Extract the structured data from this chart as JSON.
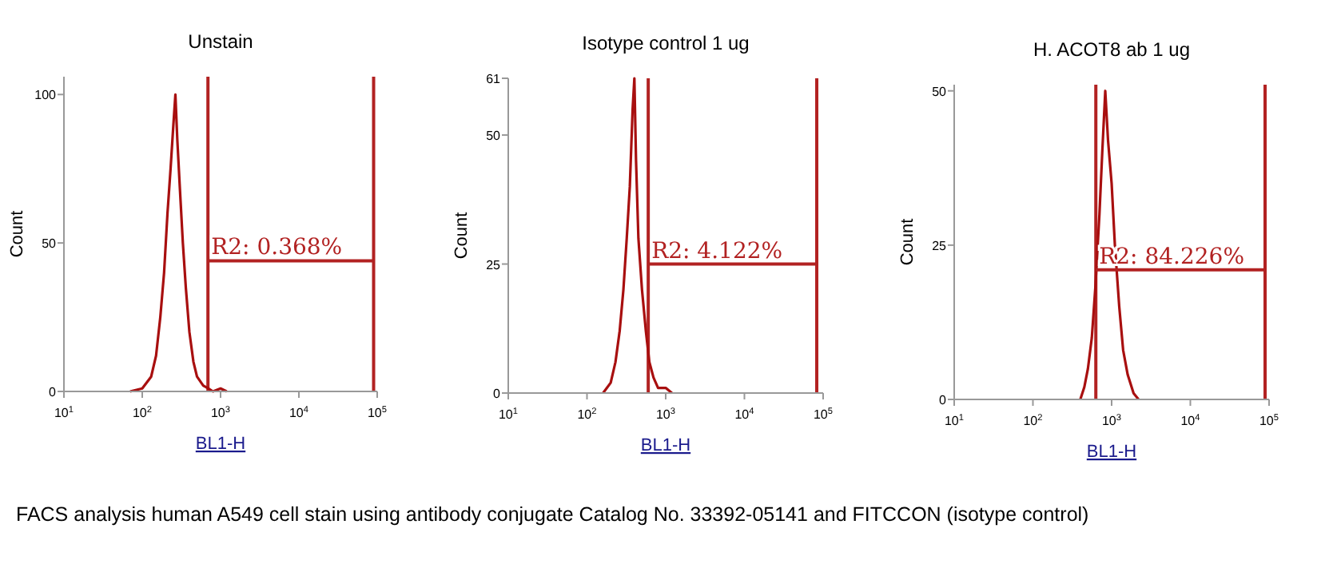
{
  "chart_data": [
    {
      "type": "line",
      "title": "Unstain",
      "xlabel": "BL1-H",
      "ylabel": "Count",
      "log": "x",
      "xlim": [
        10,
        100000
      ],
      "xticks": [
        {
          "value": 10,
          "label": "10$^{1}$"
        },
        {
          "value": 100,
          "label": "10$^{2}$"
        },
        {
          "value": 1000,
          "label": "10$^{3}$"
        },
        {
          "value": 10000,
          "label": "10$^{4}$"
        },
        {
          "value": 100000,
          "label": "10$^{5}$"
        }
      ],
      "ylim": [
        0,
        106
      ],
      "yticks": [
        0,
        50,
        100
      ],
      "series": [
        {
          "color": "#a80f0f",
          "x": [
            70,
            100,
            130,
            150,
            170,
            190,
            210,
            230,
            250,
            265,
            280,
            300,
            330,
            360,
            400,
            450,
            500,
            600,
            700,
            800,
            1000,
            1200
          ],
          "values": [
            0,
            1,
            5,
            12,
            25,
            40,
            60,
            75,
            90,
            100,
            85,
            70,
            50,
            35,
            20,
            10,
            5,
            2,
            1,
            0,
            1,
            0
          ]
        },
        {
          "color": "#b22222",
          "x": [
            690,
            90000
          ],
          "values": [
            44,
            44
          ]
        }
      ],
      "ref_lines": [
        {
          "axis": "x",
          "value": 690,
          "color": "#b22222"
        },
        {
          "axis": "x",
          "value": 90000,
          "color": "#b22222"
        }
      ],
      "annotations": [
        {
          "text": "R2: 0.368%",
          "x": 690,
          "y": 44
        },
        "FACS analysis human A549 cell stain using antibody conjugate Catalog No. 33392-05141 and FITCCON (isotype control)"
      ]
    },
    {
      "type": "line",
      "title": "Isotype control 1 ug",
      "xlabel": "BL1-H",
      "ylabel": "Count",
      "log": "x",
      "xlim": [
        10,
        100000
      ],
      "xticks": [
        {
          "value": 10,
          "label": "10$^{1}$"
        },
        {
          "value": 100,
          "label": "10$^{2}$"
        },
        {
          "value": 1000,
          "label": "10$^{3}$"
        },
        {
          "value": 10000,
          "label": "10$^{4}$"
        },
        {
          "value": 100000,
          "label": "10$^{5}$"
        }
      ],
      "ylim": [
        0,
        61
      ],
      "yticks": [
        0,
        25,
        50,
        61
      ],
      "series": [
        {
          "color": "#a80f0f",
          "x": [
            160,
            200,
            230,
            260,
            290,
            320,
            350,
            380,
            400,
            420,
            450,
            500,
            560,
            620,
            700,
            800,
            1000,
            1200
          ],
          "values": [
            0,
            2,
            6,
            12,
            20,
            30,
            40,
            55,
            61,
            45,
            30,
            20,
            12,
            6,
            3,
            1,
            1,
            0
          ]
        },
        {
          "color": "#b22222",
          "x": [
            600,
            83000
          ],
          "values": [
            25,
            25
          ]
        }
      ],
      "ref_lines": [
        {
          "axis": "x",
          "value": 600,
          "color": "#b22222"
        },
        {
          "axis": "x",
          "value": 83000,
          "color": "#b22222"
        }
      ],
      "annotations": [
        {
          "text": "R2: 4.122%",
          "x": 600,
          "y": 25
        }
      ]
    },
    {
      "type": "line",
      "title": "H. ACOT8 ab 1 ug",
      "xlabel": "BL1-H",
      "ylabel": "Count",
      "log": "x",
      "xlim": [
        10,
        100000
      ],
      "xticks": [
        {
          "value": 10,
          "label": "10$^{1}$"
        },
        {
          "value": 100,
          "label": "10$^{2}$"
        },
        {
          "value": 1000,
          "label": "10$^{3}$"
        },
        {
          "value": 10000,
          "label": "10$^{4}$"
        },
        {
          "value": 100000,
          "label": "10$^{5}$"
        }
      ],
      "ylim": [
        0,
        51
      ],
      "yticks": [
        0,
        25,
        50
      ],
      "series": [
        {
          "color": "#a80f0f",
          "x": [
            400,
            450,
            500,
            560,
            620,
            700,
            760,
            830,
            900,
            1000,
            1100,
            1250,
            1400,
            1600,
            1900,
            2200
          ],
          "values": [
            0,
            2,
            5,
            10,
            18,
            30,
            40,
            50,
            42,
            35,
            25,
            15,
            8,
            4,
            1,
            0
          ]
        },
        {
          "color": "#b22222",
          "x": [
            630,
            89000
          ],
          "values": [
            21,
            21
          ]
        }
      ],
      "ref_lines": [
        {
          "axis": "x",
          "value": 630,
          "color": "#b22222"
        },
        {
          "axis": "x",
          "value": 89000,
          "color": "#b22222"
        }
      ],
      "annotations": [
        {
          "text": "R2: 84.226%",
          "x": 630,
          "y": 21
        }
      ]
    }
  ]
}
